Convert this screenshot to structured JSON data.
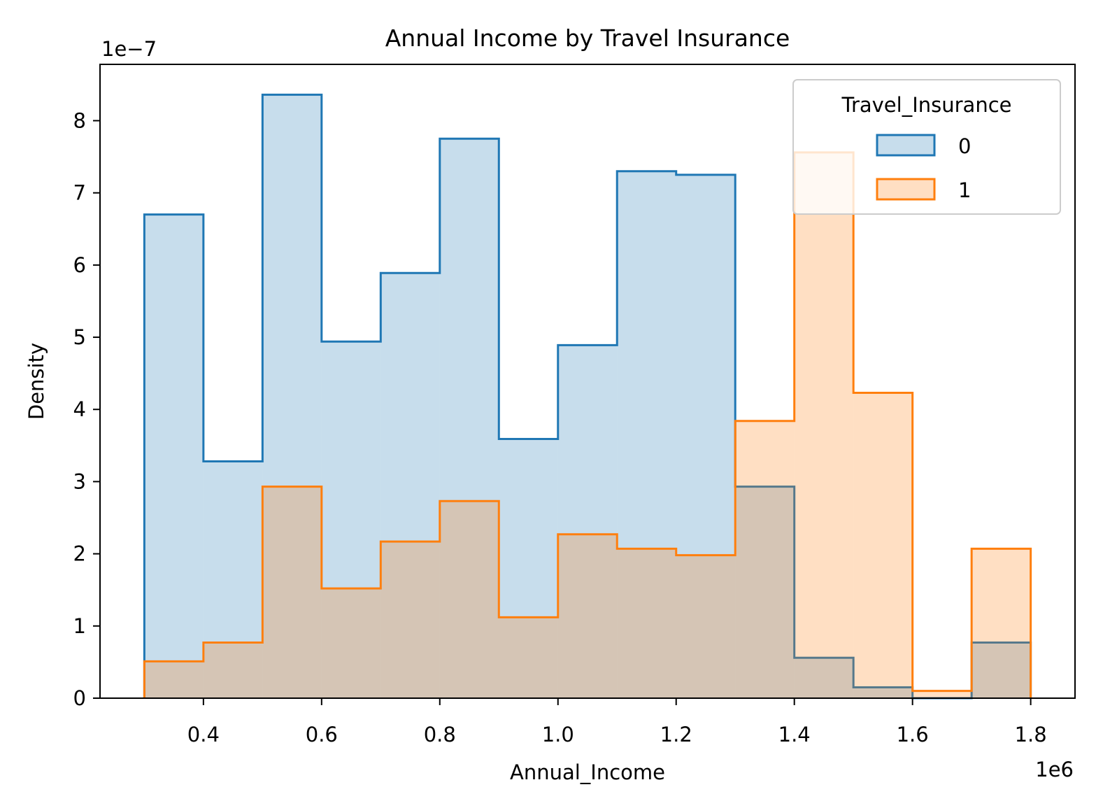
{
  "chart_data": {
    "type": "histogram",
    "title": "Annual Income by Travel Insurance",
    "xlabel": "Annual_Income",
    "ylabel": "Density",
    "x_offset_label": "1e6",
    "y_offset_label": "1e−7",
    "xlim": [
      225000,
      1875000
    ],
    "ylim": [
      0,
      8.78
    ],
    "x_scale_factor": 1000000,
    "y_scale_factor": 1e-07,
    "x_ticks": [
      400000,
      600000,
      800000,
      1000000,
      1200000,
      1400000,
      1600000,
      1800000
    ],
    "x_tick_labels": [
      "0.4",
      "0.6",
      "0.8",
      "1.0",
      "1.2",
      "1.4",
      "1.6",
      "1.8"
    ],
    "y_ticks": [
      0,
      1,
      2,
      3,
      4,
      5,
      6,
      7,
      8
    ],
    "y_tick_labels": [
      "0",
      "1",
      "2",
      "3",
      "4",
      "5",
      "6",
      "7",
      "8"
    ],
    "bin_edges": [
      300000,
      400000,
      500000,
      600000,
      700000,
      800000,
      900000,
      1000000,
      1100000,
      1200000,
      1300000,
      1400000,
      1500000,
      1600000,
      1700000,
      1800000
    ],
    "series": [
      {
        "name": "0",
        "color": "#1f77b4",
        "fill": "rgba(31,119,180,0.25)",
        "values": [
          6.7,
          3.28,
          8.36,
          4.94,
          5.89,
          7.75,
          3.59,
          4.89,
          7.3,
          7.25,
          2.93,
          0.56,
          0.15,
          0.0,
          0.77
        ]
      },
      {
        "name": "1",
        "color": "#ff7f0e",
        "fill": "rgba(255,127,14,0.25)",
        "values": [
          0.51,
          0.77,
          2.93,
          1.52,
          2.17,
          2.73,
          1.12,
          2.27,
          2.07,
          1.98,
          3.84,
          7.56,
          4.23,
          0.1,
          2.07
        ]
      }
    ],
    "legend": {
      "title": "Travel_Insurance",
      "position": "top-right",
      "entries": [
        "0",
        "1"
      ]
    },
    "grid": false
  }
}
